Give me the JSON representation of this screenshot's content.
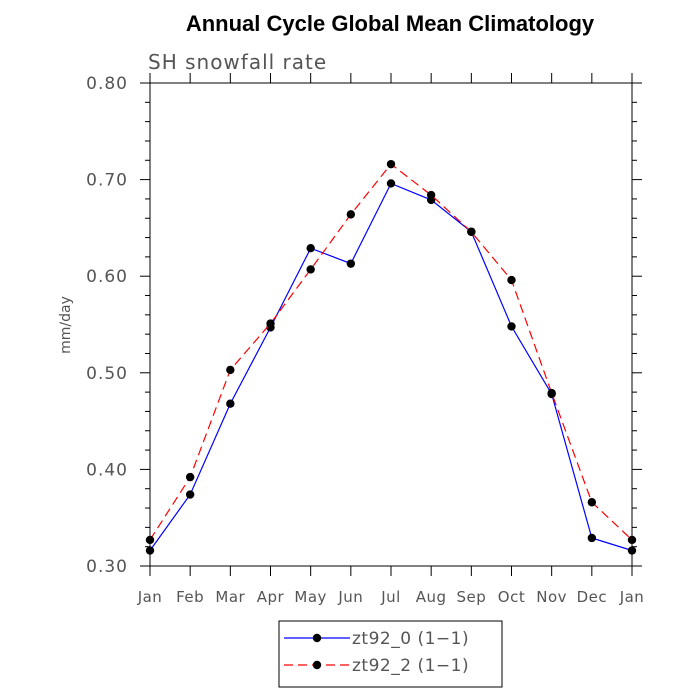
{
  "chart_data": {
    "type": "line",
    "title": "Annual Cycle Global Mean Climatology",
    "subtitle": "SH snowfall rate",
    "ylabel": "mm/day",
    "xlabel": "",
    "ylim": [
      0.3,
      0.8
    ],
    "yticks": [
      "0.30",
      "0.40",
      "0.50",
      "0.60",
      "0.70",
      "0.80"
    ],
    "categories": [
      "Jan",
      "Feb",
      "Mar",
      "Apr",
      "May",
      "Jun",
      "Jul",
      "Aug",
      "Sep",
      "Oct",
      "Nov",
      "Dec",
      "Jan"
    ],
    "series": [
      {
        "name": "zt92_0 (1−1)",
        "color": "#0000ff",
        "dash": "solid",
        "values": [
          0.316,
          0.374,
          0.468,
          0.547,
          0.629,
          0.613,
          0.696,
          0.679,
          0.646,
          0.548,
          0.478,
          0.329,
          0.316
        ]
      },
      {
        "name": "zt92_2 (1−1)",
        "color": "#ff0000",
        "dash": "dashed",
        "values": [
          0.327,
          0.392,
          0.503,
          0.551,
          0.607,
          0.664,
          0.716,
          0.684,
          0.646,
          0.596,
          0.479,
          0.366,
          0.327
        ]
      }
    ],
    "legend_position": "bottom"
  }
}
